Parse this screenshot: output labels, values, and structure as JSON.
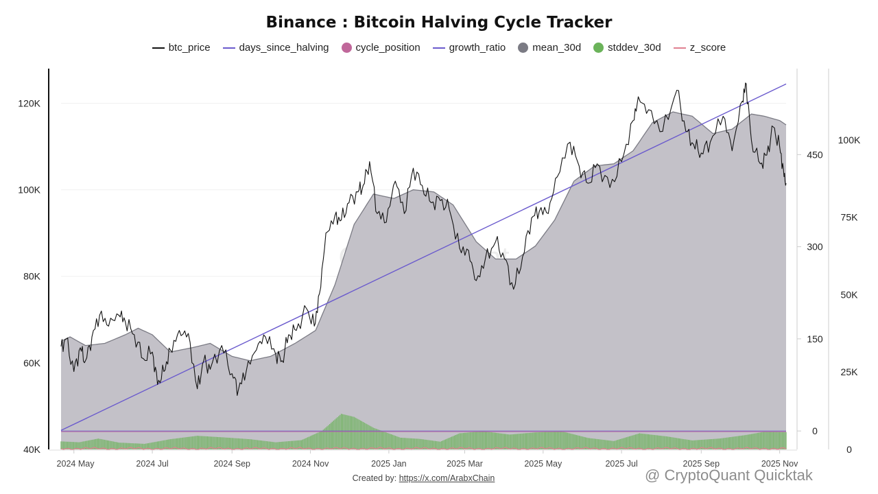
{
  "title": "Binance : Bitcoin Halving Cycle Tracker",
  "legend": [
    {
      "name": "btc_price",
      "shape": "line",
      "color": "#111111"
    },
    {
      "name": "days_since_halving",
      "shape": "line",
      "color": "#6a5acd"
    },
    {
      "name": "cycle_position",
      "shape": "dot",
      "color": "#c0679a"
    },
    {
      "name": "growth_ratio",
      "shape": "line",
      "color": "#6a5acd"
    },
    {
      "name": "mean_30d",
      "shape": "dot",
      "color": "#7b7b84"
    },
    {
      "name": "stddev_30d",
      "shape": "dot",
      "color": "#6bb35a"
    },
    {
      "name": "z_score",
      "shape": "line",
      "color": "#e08090"
    }
  ],
  "watermark": "CryptoQuant",
  "credit": {
    "prefix": "Created by: ",
    "link_text": "https://x.com/ArabxChain"
  },
  "corner_mark": "@ CryptoQuant Quicktak",
  "chart_data": {
    "type": "line",
    "x_ticks": [
      "2024 May",
      "2024 Jul",
      "2024 Sep",
      "2024 Nov",
      "2025 Jan",
      "2025 Mar",
      "2025 May",
      "2025 Jul",
      "2025 Sep",
      "2025 Nov"
    ],
    "x_tick_dates": [
      "2024-05-01",
      "2024-07-01",
      "2024-09-01",
      "2024-11-01",
      "2025-01-01",
      "2025-03-01",
      "2025-05-01",
      "2025-07-01",
      "2025-09-01",
      "2025-11-01"
    ],
    "x_range": [
      "2024-04-21",
      "2025-11-06"
    ],
    "y_left": {
      "ticks": [
        "40K",
        "60K",
        "80K",
        "100K",
        "120K"
      ],
      "values": [
        40000,
        60000,
        80000,
        100000,
        120000
      ],
      "range": [
        40000,
        128000
      ]
    },
    "y_mid": {
      "ticks": [
        "0",
        "150",
        "300",
        "450"
      ],
      "values": [
        0,
        150,
        300,
        450
      ],
      "range": [
        -30,
        590
      ]
    },
    "y_right": {
      "ticks": [
        "0",
        "25K",
        "50K",
        "75K",
        "100K"
      ],
      "values": [
        0,
        25000,
        50000,
        75000,
        100000
      ],
      "range": [
        0,
        123000
      ]
    },
    "series": [
      {
        "name": "btc_price",
        "axis": "left",
        "points": [
          [
            "2024-04-21",
            63800
          ],
          [
            "2024-04-25",
            65500
          ],
          [
            "2024-05-01",
            58000
          ],
          [
            "2024-05-06",
            63500
          ],
          [
            "2024-05-10",
            60500
          ],
          [
            "2024-05-15",
            66000
          ],
          [
            "2024-05-21",
            71000
          ],
          [
            "2024-05-28",
            68500
          ],
          [
            "2024-06-05",
            71000
          ],
          [
            "2024-06-10",
            69500
          ],
          [
            "2024-06-17",
            66500
          ],
          [
            "2024-06-24",
            61000
          ],
          [
            "2024-07-01",
            62500
          ],
          [
            "2024-07-05",
            55000
          ],
          [
            "2024-07-10",
            58000
          ],
          [
            "2024-07-15",
            63000
          ],
          [
            "2024-07-22",
            67500
          ],
          [
            "2024-07-29",
            66800
          ],
          [
            "2024-08-05",
            54000
          ],
          [
            "2024-08-10",
            60500
          ],
          [
            "2024-08-15",
            58500
          ],
          [
            "2024-08-24",
            64000
          ],
          [
            "2024-09-01",
            57500
          ],
          [
            "2024-09-06",
            53800
          ],
          [
            "2024-09-12",
            58000
          ],
          [
            "2024-09-20",
            63000
          ],
          [
            "2024-09-27",
            66000
          ],
          [
            "2024-10-05",
            62000
          ],
          [
            "2024-10-10",
            60500
          ],
          [
            "2024-10-15",
            66500
          ],
          [
            "2024-10-21",
            67500
          ],
          [
            "2024-10-29",
            72500
          ],
          [
            "2024-11-04",
            68500
          ],
          [
            "2024-11-08",
            76000
          ],
          [
            "2024-11-13",
            90000
          ],
          [
            "2024-11-20",
            94000
          ],
          [
            "2024-11-25",
            93000
          ],
          [
            "2024-12-01",
            97000
          ],
          [
            "2024-12-08",
            99500
          ],
          [
            "2024-12-12",
            101000
          ],
          [
            "2024-12-17",
            106500
          ],
          [
            "2024-12-23",
            94500
          ],
          [
            "2024-12-30",
            92500
          ],
          [
            "2025-01-06",
            102000
          ],
          [
            "2025-01-13",
            94500
          ],
          [
            "2025-01-20",
            105000
          ],
          [
            "2025-01-27",
            101000
          ],
          [
            "2025-02-03",
            97000
          ],
          [
            "2025-02-10",
            97500
          ],
          [
            "2025-02-17",
            95500
          ],
          [
            "2025-02-25",
            86500
          ],
          [
            "2025-03-04",
            86000
          ],
          [
            "2025-03-10",
            79000
          ],
          [
            "2025-03-17",
            84000
          ],
          [
            "2025-03-25",
            88000
          ],
          [
            "2025-04-01",
            84000
          ],
          [
            "2025-04-08",
            77000
          ],
          [
            "2025-04-15",
            84500
          ],
          [
            "2025-04-22",
            93500
          ],
          [
            "2025-04-28",
            95000
          ],
          [
            "2025-05-05",
            94500
          ],
          [
            "2025-05-12",
            103000
          ],
          [
            "2025-05-22",
            111000
          ],
          [
            "2025-05-29",
            105500
          ],
          [
            "2025-06-05",
            101500
          ],
          [
            "2025-06-12",
            106000
          ],
          [
            "2025-06-22",
            100500
          ],
          [
            "2025-07-01",
            106500
          ],
          [
            "2025-07-10",
            116000
          ],
          [
            "2025-07-14",
            121500
          ],
          [
            "2025-07-22",
            118500
          ],
          [
            "2025-08-02",
            113500
          ],
          [
            "2025-08-13",
            123000
          ],
          [
            "2025-08-20",
            113500
          ],
          [
            "2025-08-26",
            110500
          ],
          [
            "2025-09-01",
            108500
          ],
          [
            "2025-09-08",
            111000
          ],
          [
            "2025-09-18",
            117000
          ],
          [
            "2025-09-25",
            109000
          ],
          [
            "2025-10-03",
            120500
          ],
          [
            "2025-10-06",
            124500
          ],
          [
            "2025-10-10",
            111500
          ],
          [
            "2025-10-17",
            106000
          ],
          [
            "2025-10-22",
            108000
          ],
          [
            "2025-10-27",
            114500
          ],
          [
            "2025-11-01",
            110000
          ],
          [
            "2025-11-04",
            104500
          ],
          [
            "2025-11-06",
            101500
          ]
        ]
      },
      {
        "name": "mean_30d",
        "axis": "left",
        "points": [
          [
            "2024-04-21",
            65000
          ],
          [
            "2024-04-28",
            66000
          ],
          [
            "2024-05-10",
            64000
          ],
          [
            "2024-05-25",
            64500
          ],
          [
            "2024-06-10",
            66500
          ],
          [
            "2024-06-20",
            68000
          ],
          [
            "2024-07-01",
            66500
          ],
          [
            "2024-07-15",
            62500
          ],
          [
            "2024-08-01",
            63500
          ],
          [
            "2024-08-15",
            64500
          ],
          [
            "2024-09-01",
            61500
          ],
          [
            "2024-09-15",
            60500
          ],
          [
            "2024-10-01",
            61500
          ],
          [
            "2024-10-20",
            64500
          ],
          [
            "2024-11-05",
            67500
          ],
          [
            "2024-11-20",
            78000
          ],
          [
            "2024-12-05",
            92000
          ],
          [
            "2024-12-20",
            99000
          ],
          [
            "2025-01-05",
            98000
          ],
          [
            "2025-01-20",
            100000
          ],
          [
            "2025-02-05",
            99500
          ],
          [
            "2025-02-20",
            96500
          ],
          [
            "2025-03-10",
            88000
          ],
          [
            "2025-03-25",
            84000
          ],
          [
            "2025-04-10",
            84000
          ],
          [
            "2025-04-25",
            87000
          ],
          [
            "2025-05-10",
            93000
          ],
          [
            "2025-05-25",
            102000
          ],
          [
            "2025-06-10",
            105500
          ],
          [
            "2025-06-25",
            106000
          ],
          [
            "2025-07-10",
            109000
          ],
          [
            "2025-07-25",
            115500
          ],
          [
            "2025-08-10",
            118000
          ],
          [
            "2025-08-25",
            117000
          ],
          [
            "2025-09-10",
            113000
          ],
          [
            "2025-09-25",
            114000
          ],
          [
            "2025-10-10",
            117500
          ],
          [
            "2025-10-20",
            117000
          ],
          [
            "2025-11-01",
            116000
          ],
          [
            "2025-11-06",
            115000
          ]
        ]
      },
      {
        "name": "days_since_halving",
        "axis": "mid",
        "points": [
          [
            "2024-04-21",
            1
          ],
          [
            "2025-11-06",
            565
          ]
        ]
      },
      {
        "name": "stddev_30d",
        "axis": "right",
        "points": [
          [
            "2024-04-21",
            2600
          ],
          [
            "2024-05-05",
            2300
          ],
          [
            "2024-05-20",
            3500
          ],
          [
            "2024-06-05",
            2200
          ],
          [
            "2024-06-25",
            1800
          ],
          [
            "2024-07-15",
            3300
          ],
          [
            "2024-08-05",
            4400
          ],
          [
            "2024-08-25",
            3900
          ],
          [
            "2024-09-15",
            3300
          ],
          [
            "2024-10-05",
            2300
          ],
          [
            "2024-10-25",
            3000
          ],
          [
            "2024-11-10",
            6000
          ],
          [
            "2024-11-25",
            11500
          ],
          [
            "2024-12-05",
            10500
          ],
          [
            "2024-12-20",
            7000
          ],
          [
            "2025-01-10",
            3800
          ],
          [
            "2025-01-25",
            3400
          ],
          [
            "2025-02-10",
            2500
          ],
          [
            "2025-02-25",
            5200
          ],
          [
            "2025-03-15",
            5900
          ],
          [
            "2025-04-05",
            4800
          ],
          [
            "2025-04-25",
            5500
          ],
          [
            "2025-05-15",
            5900
          ],
          [
            "2025-06-05",
            3700
          ],
          [
            "2025-06-25",
            2700
          ],
          [
            "2025-07-15",
            5200
          ],
          [
            "2025-08-05",
            4200
          ],
          [
            "2025-08-25",
            2900
          ],
          [
            "2025-09-15",
            3500
          ],
          [
            "2025-10-05",
            4600
          ],
          [
            "2025-10-20",
            5700
          ],
          [
            "2025-11-06",
            5600
          ]
        ]
      },
      {
        "name": "z_score",
        "axis": "right",
        "points": [
          [
            "2024-04-21",
            0
          ],
          [
            "2025-11-06",
            0
          ]
        ]
      }
    ]
  }
}
